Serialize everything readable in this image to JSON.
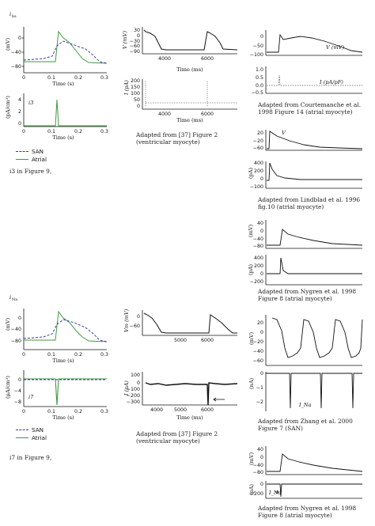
{
  "panels": {
    "ibs": {
      "title": "i_bs",
      "title_main": "i",
      "title_sub": "bs",
      "ap_ylabel": "(mV)",
      "ap_yticks": [
        "0",
        "−40",
        "−80"
      ],
      "ap_xticks": [
        "0",
        "0.1",
        "0.2",
        "0.3"
      ],
      "ap_xlabel": "Time (s)",
      "cur_ylabel": "(pA/cm²)",
      "cur_label": "i3",
      "cur_yticks": [
        "4",
        "2",
        "0"
      ],
      "cur_xticks": [
        "0",
        "0.1",
        "0.2",
        "0.3"
      ],
      "cur_xlabel": "Time (s)",
      "legend": [
        {
          "name": "SAN",
          "color": "#3a3aa0",
          "style": "dashed"
        },
        {
          "name": "Atrial",
          "color": "#3f9a3f",
          "style": "solid"
        }
      ],
      "caption": "i3 in Figure 9,"
    },
    "ref37_top": {
      "v_ylabel": "V (mV)",
      "v_yticks": [
        "30",
        "0",
        "−30",
        "−60",
        "−90"
      ],
      "v_xticks": [
        "4000",
        "6000"
      ],
      "v_xlabel": "Time (ms)",
      "i_ylabel": "I (pA)",
      "i_yticks": [
        "200",
        "150",
        "100",
        "50",
        "0"
      ],
      "i_xticks": [
        "4000",
        "6000"
      ],
      "i_xlabel": "Time (ms)",
      "caption": "Adapted from [37] Figure 2 (ventricular myocyte)"
    },
    "courtemanche": {
      "v_label": "V (mV)",
      "v_yticks": [
        "0",
        "−50",
        "−100"
      ],
      "i_label": "I (pA/pF)",
      "i_yticks": [
        "1.0",
        "0.5",
        "0.0",
        "−0.5"
      ],
      "caption": "Adapted from Courtemanche et al. 1998 Figure 14 (atrial myocyte)"
    },
    "lindblad": {
      "v_label": "V",
      "v_yticks": [
        "20",
        "−20",
        "−60"
      ],
      "i_ylabel": "(pA)",
      "i_yticks": [
        "400",
        "200",
        "0",
        "−100"
      ],
      "caption": "Adapted from Lindblad et al. 1996 fig.10 (atrial myocyte)"
    },
    "nygren_top": {
      "v_ylabel": "(mV)",
      "v_yticks": [
        "40",
        "0",
        "−40",
        "−80"
      ],
      "i_ylabel": "(pA)",
      "i_yticks": [
        "400",
        "200",
        "0",
        "−200"
      ],
      "caption": "Adapted from Nygren et al. 1998 Figure 8 (atrial myocyte)"
    },
    "ina": {
      "title": "i_Na",
      "title_main": "i",
      "title_sub": "Na",
      "ap_ylabel": "(mV)",
      "ap_yticks": [
        "0",
        "−40",
        "−80"
      ],
      "ap_xticks": [
        "0",
        "0.1",
        "0.2",
        "0.3"
      ],
      "ap_xlabel": "Time (s)",
      "cur_ylabel": "(μA/cm²)",
      "cur_label": "i7",
      "cur_yticks": [
        "0",
        "−4",
        "−8"
      ],
      "cur_xticks": [
        "0",
        "0.1",
        "0.2",
        "0.3"
      ],
      "cur_xlabel": "Time (s)",
      "legend": [
        {
          "name": "SAN",
          "color": "#3a3aa0",
          "style": "dashed"
        },
        {
          "name": "Atrial",
          "color": "#3f9a3f",
          "style": "solid"
        }
      ],
      "caption": "i7 in Figure 9,"
    },
    "ref37_bottom": {
      "v_ylabel": "Vm (mV)",
      "v_yticks": [
        "0",
        "−60"
      ],
      "v_xticks": [
        "5000",
        "6000"
      ],
      "i_ylabel": "I (pA)",
      "i_yticks": [
        "100",
        "0",
        "−100",
        "−200",
        "−300"
      ],
      "i_xticks": [
        "4000",
        "5000",
        "6000"
      ],
      "i_xlabel": "Time (ms)",
      "caption": "Adapted from [37] Figure 2 (ventricular myocyte)"
    },
    "zhang": {
      "v_ylabel": "(mV)",
      "v_yticks": [
        "20",
        "0",
        "−20",
        "−40",
        "−60"
      ],
      "i_ylabel": "(nA)",
      "i_yticks": [
        "0",
        "−1",
        "−2"
      ],
      "i_label": "I_Na",
      "caption": "Adapted from Zhang et al. 2000 Figure 7 (SAN)"
    },
    "nygren_bottom": {
      "v_ylabel": "(mV)",
      "v_yticks": [
        "40",
        "0",
        "−40",
        "−80"
      ],
      "i_ylabel": "(pA)",
      "i_yticks": [
        "0",
        "−200"
      ],
      "i_label": "I_Na",
      "caption": "Adapted from Nygren et al. 1998 Figure 8 (atrial myocyte)"
    }
  }
}
